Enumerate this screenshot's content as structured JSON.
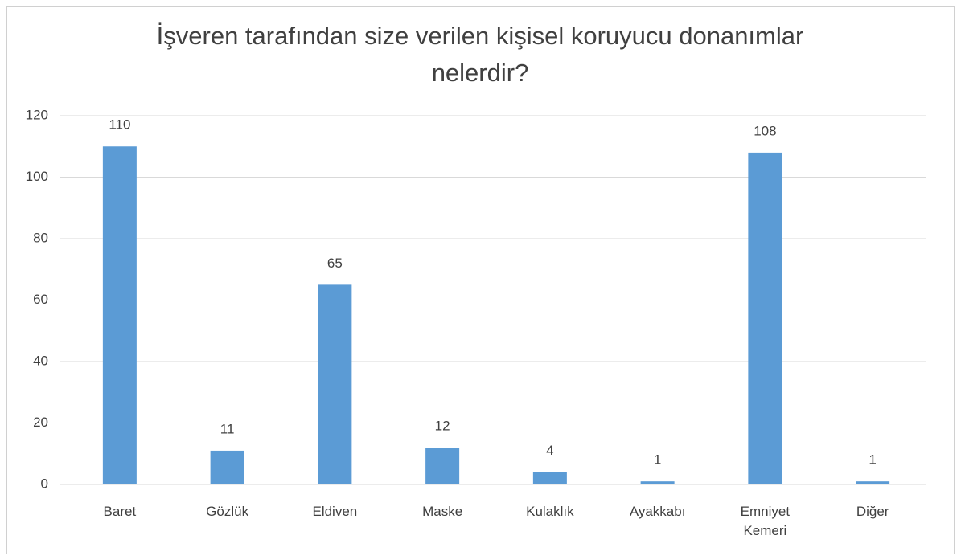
{
  "chart_data": {
    "type": "bar",
    "title": "İşveren tarafından size verilen  kişisel koruyucu donanımlar nelerdir?",
    "categories": [
      "Baret",
      "Gözlük",
      "Eldiven",
      "Maske",
      "Kulaklık",
      "Ayakkabı",
      "Emniyet Kemeri",
      "Diğer"
    ],
    "values": [
      110,
      11,
      65,
      12,
      4,
      1,
      108,
      1
    ],
    "color": "#5b9bd5",
    "ylim": [
      0,
      120
    ],
    "yticks": [
      0,
      20,
      40,
      60,
      80,
      100,
      120
    ],
    "grid": true
  }
}
